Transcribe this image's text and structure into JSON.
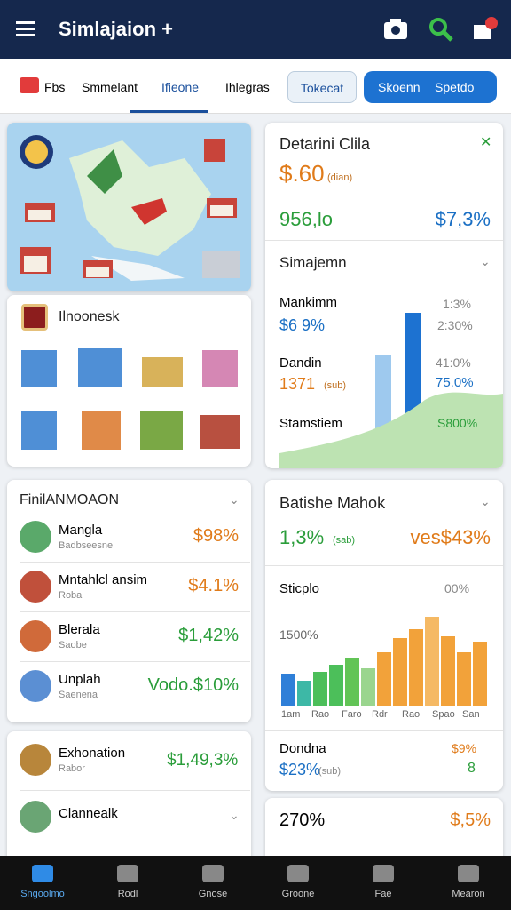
{
  "header": {
    "title": "Simlajaion +"
  },
  "tabs": [
    "Fbs",
    "Smmelant",
    "Ifieone",
    "Ihlegras"
  ],
  "buttons": {
    "secondary": "Tokecat",
    "primary": [
      "Skoenn",
      "Spetdo"
    ]
  },
  "location_card": {
    "title": "Ilnoonesk"
  },
  "detail_card": {
    "title": "Detarini Clila",
    "price": "$.60",
    "price_note": "(dian)",
    "left_stat": "956,lo",
    "right_stat": "$7,3%",
    "section": "Simajemn",
    "rows": [
      {
        "label": "Mankimm",
        "value": "$6 9%",
        "right_top": "1:3%",
        "right_bottom": "2:30%"
      },
      {
        "label": "Dandin",
        "value": "1371",
        "note": "(sub)",
        "right_top": "41:0%",
        "right_bottom": "75.0%"
      }
    ],
    "footer_label": "Stamstiem",
    "footer_value": "S800%"
  },
  "list_card": {
    "title": "FinilANMOAON",
    "items": [
      {
        "name": "Mangla",
        "sub": "Badbseesne",
        "value": "$98%"
      },
      {
        "name": "Mntahlcl ansim",
        "sub": "Roba",
        "value": "$4.1%"
      },
      {
        "name": "Blerala",
        "sub": "Saobe",
        "value": "$1,42%"
      },
      {
        "name": "Unplah",
        "sub": "Saenena",
        "value": "Vodo.$10%"
      }
    ]
  },
  "chart_card": {
    "title": "Batishe Mahok",
    "stat": "1,3%",
    "stat_note": "(sab)",
    "stat_right": "ves$43%",
    "section": "Sticplo",
    "section_value": "00%",
    "axis_label": "1500%",
    "x_labels": [
      "1am",
      "Rao",
      "Faro",
      "Rdr",
      "Rao",
      "Spao",
      "San"
    ],
    "footer_label": "Dondna",
    "footer_value": "$9%",
    "footer_stat": "$23%",
    "footer_note": "(sub)",
    "footer_right": "8"
  },
  "bottom_list": {
    "items": [
      {
        "name": "Exhonation",
        "sub": "Rabor",
        "value": "$1,49,3%"
      },
      {
        "name": "Clannealk"
      }
    ]
  },
  "mini_card": {
    "left": "270%",
    "right": "$,5%"
  },
  "nav": [
    "Sngoolmo",
    "Rodl",
    "Gnose",
    "Groone",
    "Fae",
    "Mearon"
  ]
}
